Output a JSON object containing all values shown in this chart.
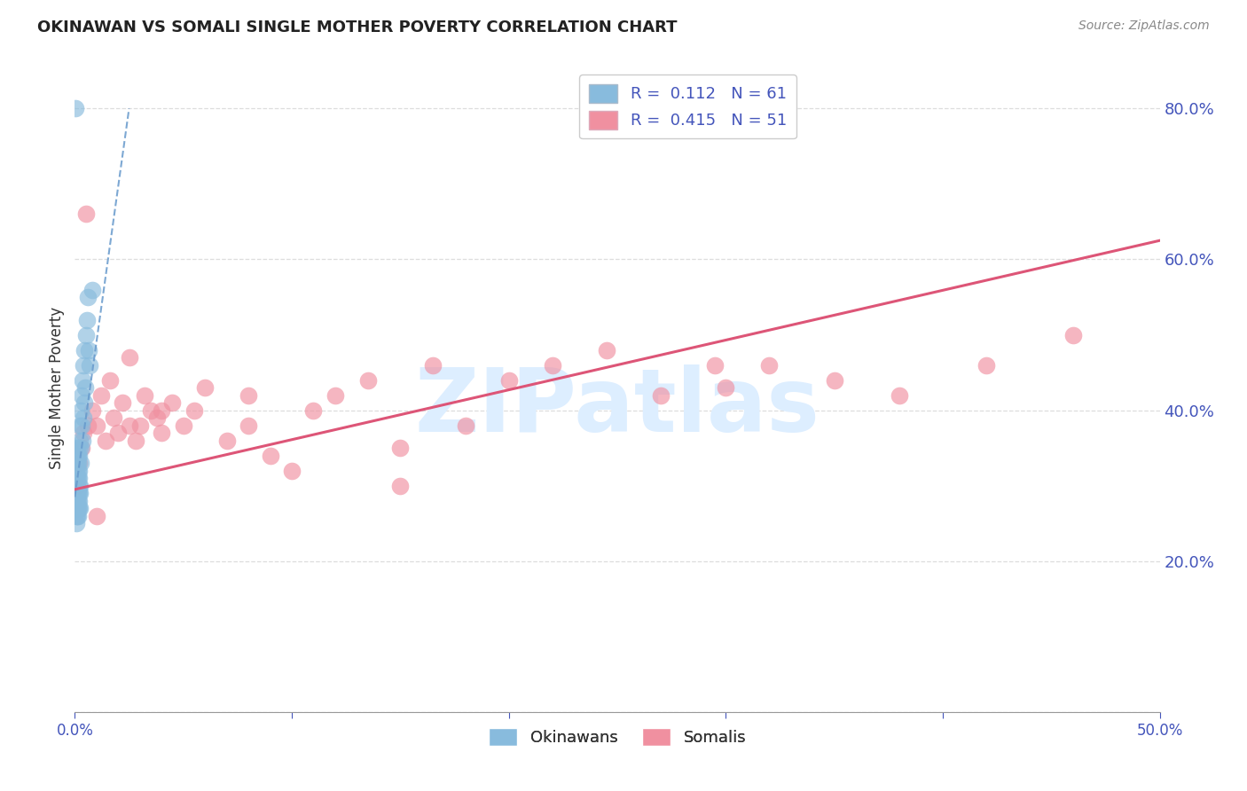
{
  "title": "OKINAWAN VS SOMALI SINGLE MOTHER POVERTY CORRELATION CHART",
  "source": "Source: ZipAtlas.com",
  "ylabel": "Single Mother Poverty",
  "xmin": 0.0,
  "xmax": 0.5,
  "ymin": 0.0,
  "ymax": 0.86,
  "yticks": [
    0.0,
    0.2,
    0.4,
    0.6,
    0.8
  ],
  "ytick_labels": [
    "",
    "20.0%",
    "40.0%",
    "60.0%",
    "80.0%"
  ],
  "xticks": [
    0.0,
    0.1,
    0.2,
    0.3,
    0.4,
    0.5
  ],
  "xtick_labels": [
    "0.0%",
    "",
    "",
    "",
    "",
    "50.0%"
  ],
  "okinawan_color": "#88bbdd",
  "somali_color": "#f090a0",
  "regression_okinawan_color": "#6699cc",
  "regression_somali_color": "#dd5577",
  "background_color": "#ffffff",
  "grid_color": "#dddddd",
  "watermark_text": "ZIPatlas",
  "watermark_color": "#ddeeff",
  "R_okinawan": 0.112,
  "N_okinawan": 61,
  "R_somali": 0.415,
  "N_somali": 51,
  "okinawan_x": [
    0.0002,
    0.0003,
    0.0003,
    0.0004,
    0.0005,
    0.0005,
    0.0006,
    0.0006,
    0.0007,
    0.0007,
    0.0008,
    0.0008,
    0.0009,
    0.0009,
    0.001,
    0.001,
    0.001,
    0.0011,
    0.0011,
    0.0012,
    0.0012,
    0.0013,
    0.0013,
    0.0014,
    0.0014,
    0.0015,
    0.0015,
    0.0016,
    0.0016,
    0.0017,
    0.0017,
    0.0018,
    0.0018,
    0.0019,
    0.002,
    0.002,
    0.0021,
    0.0022,
    0.0023,
    0.0024,
    0.0025,
    0.0025,
    0.0026,
    0.0027,
    0.0028,
    0.003,
    0.0032,
    0.0034,
    0.0036,
    0.0038,
    0.004,
    0.0042,
    0.0045,
    0.0048,
    0.005,
    0.0055,
    0.006,
    0.0065,
    0.007,
    0.008,
    0.0002
  ],
  "okinawan_y": [
    0.3,
    0.32,
    0.28,
    0.27,
    0.31,
    0.29,
    0.33,
    0.26,
    0.3,
    0.25,
    0.32,
    0.28,
    0.31,
    0.27,
    0.34,
    0.29,
    0.26,
    0.33,
    0.28,
    0.3,
    0.35,
    0.27,
    0.32,
    0.29,
    0.31,
    0.28,
    0.34,
    0.26,
    0.33,
    0.3,
    0.29,
    0.31,
    0.27,
    0.35,
    0.32,
    0.28,
    0.34,
    0.36,
    0.3,
    0.29,
    0.38,
    0.27,
    0.33,
    0.4,
    0.35,
    0.42,
    0.38,
    0.36,
    0.44,
    0.39,
    0.46,
    0.41,
    0.48,
    0.43,
    0.5,
    0.52,
    0.55,
    0.48,
    0.46,
    0.56,
    0.8
  ],
  "somali_x": [
    0.001,
    0.002,
    0.003,
    0.004,
    0.005,
    0.006,
    0.008,
    0.01,
    0.012,
    0.014,
    0.016,
    0.018,
    0.02,
    0.022,
    0.025,
    0.028,
    0.03,
    0.032,
    0.035,
    0.038,
    0.04,
    0.045,
    0.05,
    0.055,
    0.06,
    0.07,
    0.08,
    0.09,
    0.1,
    0.11,
    0.12,
    0.135,
    0.15,
    0.165,
    0.18,
    0.2,
    0.22,
    0.245,
    0.27,
    0.295,
    0.32,
    0.35,
    0.38,
    0.42,
    0.46,
    0.01,
    0.025,
    0.04,
    0.08,
    0.15,
    0.3
  ],
  "somali_y": [
    0.3,
    0.33,
    0.35,
    0.37,
    0.66,
    0.38,
    0.4,
    0.38,
    0.42,
    0.36,
    0.44,
    0.39,
    0.37,
    0.41,
    0.47,
    0.36,
    0.38,
    0.42,
    0.4,
    0.39,
    0.37,
    0.41,
    0.38,
    0.4,
    0.43,
    0.36,
    0.38,
    0.34,
    0.32,
    0.4,
    0.42,
    0.44,
    0.35,
    0.46,
    0.38,
    0.44,
    0.46,
    0.48,
    0.42,
    0.46,
    0.46,
    0.44,
    0.42,
    0.46,
    0.5,
    0.26,
    0.38,
    0.4,
    0.42,
    0.3,
    0.43
  ],
  "somali_regression_x0": 0.0,
  "somali_regression_y0": 0.295,
  "somali_regression_x1": 0.5,
  "somali_regression_y1": 0.625,
  "okinawan_regression_x0": 0.0,
  "okinawan_regression_y0": 0.285,
  "okinawan_regression_x1": 0.025,
  "okinawan_regression_y1": 0.8
}
